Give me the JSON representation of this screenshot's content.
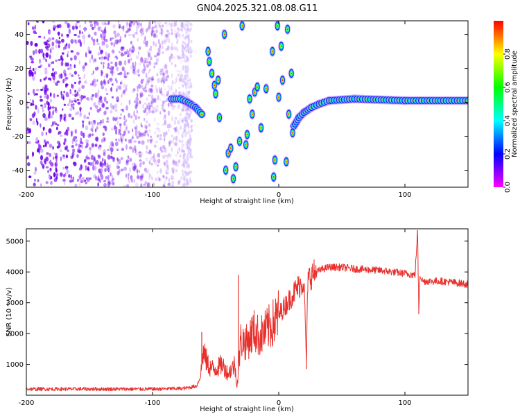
{
  "figure": {
    "title": "GN04.2025.321.08.08.G11"
  },
  "chart_data": [
    {
      "type": "heatmap",
      "title": "GN04.2025.321.08.08.G11",
      "xlabel": "Height of straight line (km)",
      "ylabel": "Frequency (Hz)",
      "xlim": [
        -200,
        150
      ],
      "ylim": [
        -50,
        48
      ],
      "xticks": [
        -200,
        -100,
        0,
        100
      ],
      "yticks": [
        -40,
        -20,
        0,
        20,
        40
      ],
      "colorbar": {
        "label": "Normalized spectral amplitude",
        "range": [
          0,
          1
        ],
        "ticks": [
          0.0,
          0.2,
          0.4,
          0.6,
          0.8
        ],
        "tick_labels": [
          "0.0",
          "0.2",
          "0.4",
          "0.6",
          "0.8"
        ],
        "colormap": [
          "#ff00ff",
          "#0000ff",
          "#00ffff",
          "#00ff00",
          "#ffff00",
          "#ff0000"
        ]
      },
      "features": {
        "noise_region_km": [
          -200,
          -72
        ],
        "main_trace": [
          {
            "x": -85,
            "y": 2
          },
          {
            "x": -78,
            "y": 2
          },
          {
            "x": -72,
            "y": 0
          },
          {
            "x": -66,
            "y": -3
          },
          {
            "x": -61,
            "y": -7
          }
        ],
        "recovered_trace": [
          {
            "x": 12,
            "y": -14
          },
          {
            "x": 16,
            "y": -9
          },
          {
            "x": 20,
            "y": -6
          },
          {
            "x": 26,
            "y": -3
          },
          {
            "x": 32,
            "y": -1
          },
          {
            "x": 40,
            "y": 1
          },
          {
            "x": 60,
            "y": 2
          },
          {
            "x": 100,
            "y": 1
          },
          {
            "x": 150,
            "y": 1
          }
        ],
        "scattered_blobs": [
          {
            "x": -56,
            "y": 30
          },
          {
            "x": -55,
            "y": 24
          },
          {
            "x": -53,
            "y": 17
          },
          {
            "x": -51,
            "y": 10
          },
          {
            "x": -50,
            "y": 5
          },
          {
            "x": -48,
            "y": 13
          },
          {
            "x": -47,
            "y": -9
          },
          {
            "x": -43,
            "y": 40
          },
          {
            "x": -42,
            "y": -40
          },
          {
            "x": -40,
            "y": -30
          },
          {
            "x": -38,
            "y": -27
          },
          {
            "x": -36,
            "y": -45
          },
          {
            "x": -34,
            "y": -38
          },
          {
            "x": -31,
            "y": -23
          },
          {
            "x": -29,
            "y": 45
          },
          {
            "x": -26,
            "y": -25
          },
          {
            "x": -25,
            "y": -19
          },
          {
            "x": -23,
            "y": 2
          },
          {
            "x": -21,
            "y": -7
          },
          {
            "x": -19,
            "y": 6
          },
          {
            "x": -17,
            "y": 9
          },
          {
            "x": -14,
            "y": -15
          },
          {
            "x": -10,
            "y": 8
          },
          {
            "x": -5,
            "y": 30
          },
          {
            "x": -4,
            "y": -44
          },
          {
            "x": -3,
            "y": -34
          },
          {
            "x": -1,
            "y": 45
          },
          {
            "x": 0,
            "y": 3
          },
          {
            "x": 2,
            "y": 33
          },
          {
            "x": 3,
            "y": 13
          },
          {
            "x": 6,
            "y": -35
          },
          {
            "x": 7,
            "y": 43
          },
          {
            "x": 8,
            "y": -7
          },
          {
            "x": 10,
            "y": 17
          },
          {
            "x": 11,
            "y": -18
          }
        ]
      }
    },
    {
      "type": "line",
      "xlabel": "Height of straight line (km)",
      "ylabel": "SNR (10 * v/v)",
      "xlim": [
        -200,
        150
      ],
      "ylim": [
        0,
        5400
      ],
      "xticks": [
        -200,
        -100,
        0,
        100
      ],
      "yticks": [
        1000,
        2000,
        3000,
        4000,
        5000
      ],
      "series": [
        {
          "name": "SNR",
          "color": "#e8302c",
          "x": [
            -200,
            -150,
            -100,
            -75,
            -65,
            -62,
            -60,
            -55,
            -50,
            -45,
            -40,
            -35,
            -33,
            -30,
            -25,
            -20,
            -15,
            -10,
            -5,
            0,
            5,
            10,
            15,
            20,
            22,
            23,
            24,
            26,
            30,
            35,
            40,
            50,
            60,
            80,
            100,
            108,
            110,
            111,
            112,
            114,
            120,
            130,
            140,
            150
          ],
          "values": [
            200,
            200,
            200,
            220,
            300,
            600,
            1400,
            900,
            850,
            1000,
            700,
            1000,
            300,
            1800,
            1700,
            2100,
            1900,
            2100,
            2300,
            2600,
            2900,
            3200,
            3500,
            3700,
            1000,
            3700,
            3800,
            3900,
            4000,
            4100,
            4150,
            4150,
            4100,
            4050,
            3950,
            3900,
            5300,
            2700,
            3900,
            3700,
            3700,
            3700,
            3650,
            3600
          ]
        }
      ],
      "spikes": [
        {
          "x": -61,
          "y": 2050
        },
        {
          "x": -32,
          "y": 3900
        },
        {
          "x": 22,
          "y": 850
        },
        {
          "x": 110,
          "y": 5350
        },
        {
          "x": 111,
          "y": 2650
        }
      ],
      "noise_amplitude": 120
    }
  ]
}
